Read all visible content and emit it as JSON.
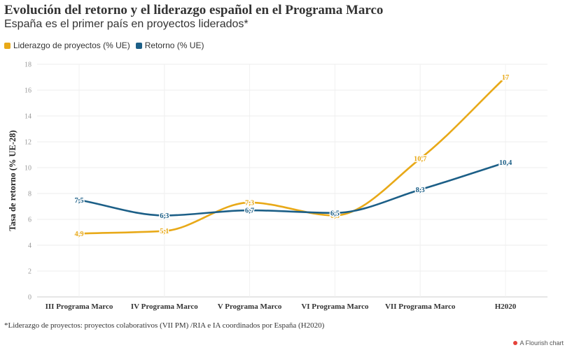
{
  "header": {
    "title": "Evolución del retorno y el liderazgo español en el Programa Marco",
    "subtitle": "España es el primer país en proyectos liderados*"
  },
  "footnote": "*Liderazgo de proyectos: proyectos colaborativos (VII PM) /RIA e IA coordinados por España (H2020)",
  "credit": "A Flourish chart",
  "chart_data": {
    "type": "line",
    "categories": [
      "III Programa Marco",
      "IV Programa Marco",
      "V Programa Marco",
      "VI Programa Marco",
      "VII Programa Marco",
      "H2020"
    ],
    "ylabel": "Tasa de retorno (% UE-28)",
    "ylim": [
      0,
      18
    ],
    "yticks": [
      0,
      2,
      4,
      6,
      8,
      10,
      12,
      14,
      16,
      18
    ],
    "grid": true,
    "legend_position": "top-left",
    "series": [
      {
        "name": "Liderazgo de proyectos (% UE)",
        "color": "#e8a918",
        "values": [
          4.9,
          5.1,
          7.3,
          6.3,
          10.7,
          17
        ],
        "labels": [
          "4,9",
          "5,1",
          "7,3",
          "6,3",
          "10,7",
          "17"
        ]
      },
      {
        "name": "Retorno (% UE)",
        "color": "#1c5f87",
        "values": [
          7.5,
          6.3,
          6.7,
          6.5,
          8.3,
          10.4
        ],
        "labels": [
          "7,5",
          "6,3",
          "6,7",
          "6,5",
          "8,3",
          "10,4"
        ]
      }
    ]
  }
}
